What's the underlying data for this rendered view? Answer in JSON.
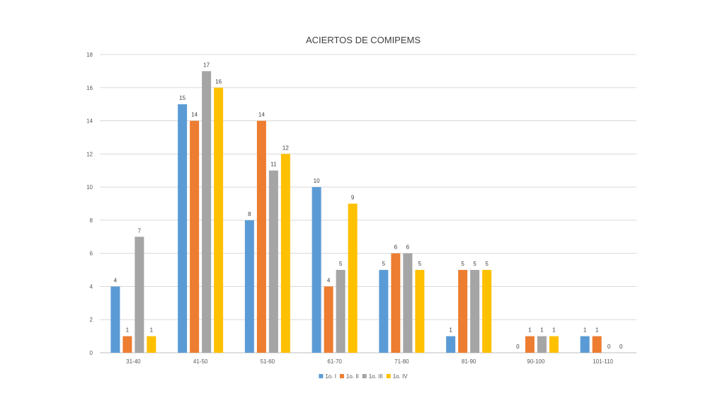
{
  "chart_data": {
    "type": "bar",
    "title": "ACIERTOS DE COMIPEMS",
    "xlabel": "",
    "ylabel": "",
    "categories": [
      "31-40",
      "41-50",
      "51-60",
      "61-70",
      "71-80",
      "81-90",
      "90-100",
      "101-110"
    ],
    "y_ticks": [
      "0",
      "2",
      "4",
      "6",
      "8",
      "10",
      "12",
      "14",
      "16",
      "18"
    ],
    "ylim": [
      0,
      18
    ],
    "grid": true,
    "legend_position": "bottom",
    "series": [
      {
        "name": "1o. I",
        "color": "#5B9BD5",
        "values": [
          4,
          15,
          8,
          10,
          5,
          1,
          0,
          1
        ]
      },
      {
        "name": "1o. II",
        "color": "#ED7D31",
        "values": [
          1,
          14,
          14,
          4,
          6,
          5,
          1,
          1
        ]
      },
      {
        "name": "1o. III",
        "color": "#A5A5A5",
        "values": [
          7,
          17,
          11,
          5,
          6,
          5,
          1,
          0
        ]
      },
      {
        "name": "1o. IV",
        "color": "#FFC000",
        "values": [
          1,
          16,
          12,
          9,
          5,
          5,
          1,
          0
        ]
      }
    ]
  }
}
